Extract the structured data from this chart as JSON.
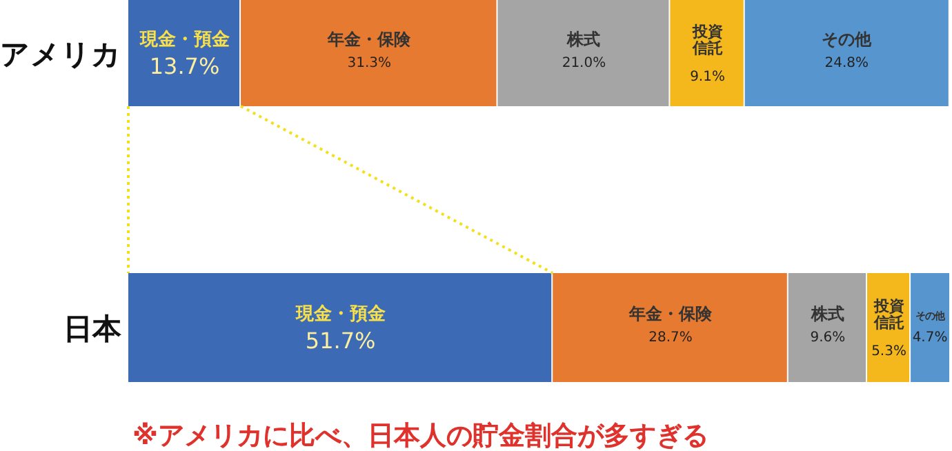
{
  "chart_data": {
    "type": "bar",
    "orientation": "horizontal",
    "stacked": true,
    "categories": [
      "アメリカ",
      "日本"
    ],
    "series": [
      {
        "name": "現金・預金",
        "color": "#3d6ab5",
        "values": [
          13.7,
          51.7
        ],
        "value_labels": [
          "13.7%",
          "51.7%"
        ]
      },
      {
        "name": "年金・保険",
        "color": "#e57a30",
        "values": [
          31.3,
          28.7
        ],
        "value_labels": [
          "31.3%",
          "28.7%"
        ]
      },
      {
        "name": "株式",
        "color": "#a5a5a5",
        "values": [
          21.0,
          9.6
        ],
        "value_labels": [
          "21.0%",
          "9.6%"
        ]
      },
      {
        "name": "投資信託",
        "color": "#f5b81c",
        "values": [
          9.1,
          5.3
        ],
        "value_labels": [
          "9.1%",
          "5.3%"
        ]
      },
      {
        "name": "その他",
        "color": "#5795cf",
        "values": [
          24.8,
          4.7
        ],
        "value_labels": [
          "24.8%",
          "4.7%"
        ]
      }
    ],
    "annotations": [
      "※アメリカに比べ、日本人の貯金割合が多すぎる"
    ]
  }
}
